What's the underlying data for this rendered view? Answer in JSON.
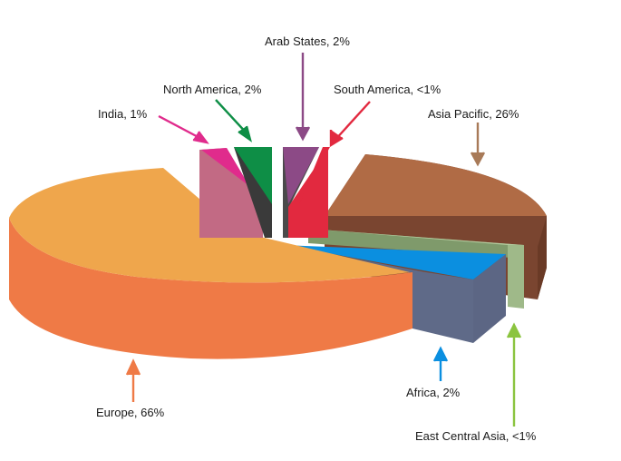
{
  "chart_data": {
    "type": "pie",
    "variant": "exploded-3d",
    "categories": [
      "Europe",
      "India",
      "North America",
      "Arab States",
      "South America",
      "Asia Pacific",
      "East Central Asia",
      "Africa"
    ],
    "values": [
      "66%",
      "1%",
      "2%",
      "2%",
      "<1%",
      "26%",
      "<1%",
      "2%"
    ],
    "labels": [
      "Europe, 66%",
      "India, 1%",
      "North America, 2%",
      "Arab States, 2%",
      "South America, <1%",
      "Asia Pacific, 26%",
      "East Central Asia, <1%",
      "Africa, 2%"
    ],
    "colors": {
      "Europe": "#EFA64C",
      "India": "#E02B8C",
      "North America": "#0E8E46",
      "Arab States": "#8C4A86",
      "South America": "#E2293F",
      "Asia Pacific": "#A06545",
      "East Central Asia": "#9FB989",
      "Africa": "#0B8FE0"
    },
    "legend": "none"
  }
}
